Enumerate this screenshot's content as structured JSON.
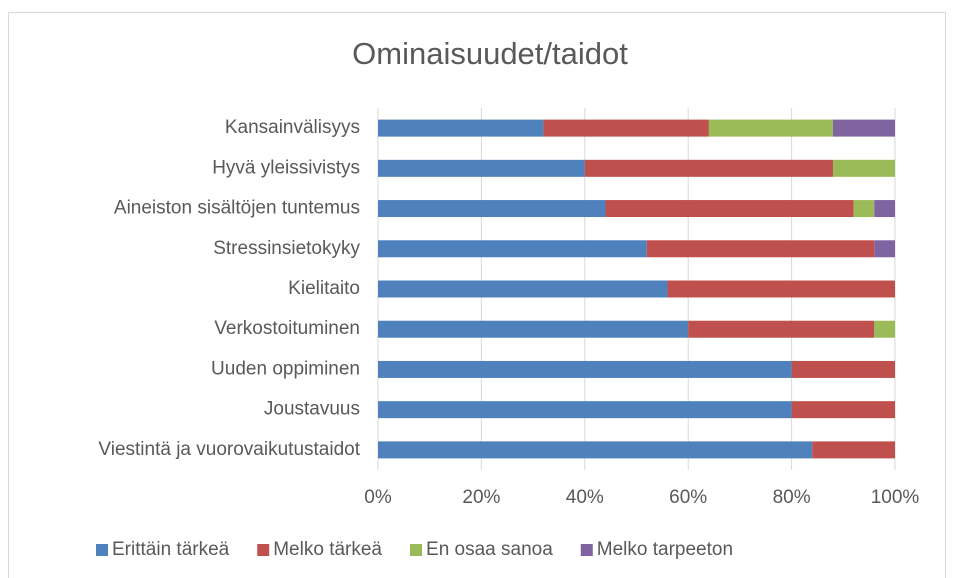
{
  "chart_data": {
    "type": "stacked-bar-horizontal",
    "title": "Ominaisuudet/taidot",
    "categories": [
      "Kansainvälisyys",
      "Hyvä yleissivistys",
      "Aineiston sisältöjen tuntemus",
      "Stressinsietokyky",
      "Kielitaito",
      "Verkostoituminen",
      "Uuden oppiminen",
      "Joustavuus",
      "Viestintä ja vuorovaikutustaidot"
    ],
    "series": [
      {
        "name": "Erittäin tärkeä",
        "color": "#4f81bd",
        "values": [
          32,
          40,
          44,
          52,
          56,
          60,
          80,
          80,
          84
        ]
      },
      {
        "name": "Melko tärkeä",
        "color": "#c0504d",
        "values": [
          32,
          48,
          48,
          44,
          44,
          36,
          20,
          20,
          16
        ]
      },
      {
        "name": "En osaa sanoa",
        "color": "#9bbb59",
        "values": [
          24,
          12,
          4,
          0,
          0,
          4,
          0,
          0,
          0
        ]
      },
      {
        "name": "Melko tarpeeton",
        "color": "#8064a2",
        "values": [
          12,
          0,
          4,
          4,
          0,
          0,
          0,
          0,
          0
        ]
      }
    ],
    "xlim": [
      0,
      100
    ],
    "xticks": [
      {
        "value": 0,
        "label": "0%"
      },
      {
        "value": 20,
        "label": "20%"
      },
      {
        "value": 40,
        "label": "40%"
      },
      {
        "value": 60,
        "label": "60%"
      },
      {
        "value": 80,
        "label": "80%"
      },
      {
        "value": 100,
        "label": "100%"
      }
    ],
    "grid": true,
    "legend": "bottom"
  }
}
